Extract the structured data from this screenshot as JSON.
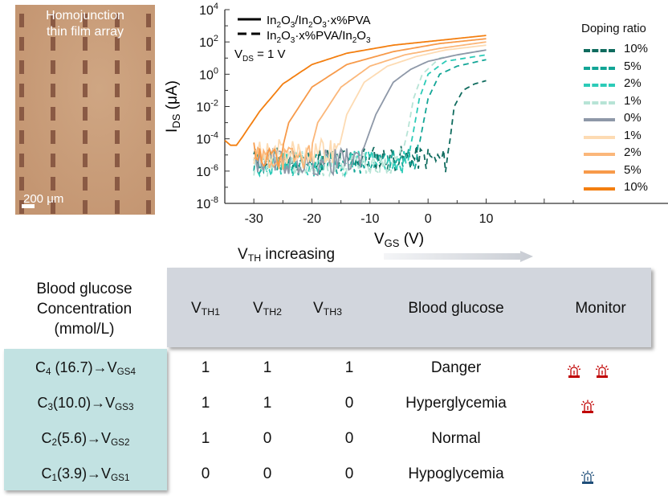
{
  "micrograph": {
    "title_line1": "Homojunction",
    "title_line2": "thin film array",
    "scale_label": "200 μm"
  },
  "chart_data": {
    "type": "line",
    "title": "",
    "xlabel": "V_GS (V)",
    "ylabel": "I_DS (μA)",
    "xlim": [
      -35,
      25
    ],
    "ylim_log10": [
      -8,
      4
    ],
    "yscale": "log",
    "xticks": [
      -30,
      -20,
      -10,
      0,
      10
    ],
    "xtick_labels": [
      "-30",
      "-20",
      "-10",
      "0",
      "10"
    ],
    "yticks_log10": [
      4,
      2,
      0,
      -2,
      -4,
      -6,
      -8
    ],
    "ytick_labels": [
      "10^4",
      "10^2",
      "10^0",
      "10^-2",
      "10^-4",
      "10^-6",
      "10^-8"
    ],
    "annotations": {
      "solid_style_label": "In2O3/In2O3·x%PVA",
      "dashed_style_label": "In2O3·x%PVA/In2O3",
      "condition": "V_DS = 1 V"
    },
    "legend_title": "Doping ratio",
    "legend_position": "right",
    "series": [
      {
        "name": "10%",
        "structure": "In2O3·x%PVA/In2O3",
        "style": "dashed",
        "color": "#0f6b5e",
        "x": [
          -30,
          -20,
          -10,
          0,
          3,
          3.8,
          4.5,
          6,
          8,
          10
        ],
        "log10_y": [
          -5.2,
          -5.3,
          -5.2,
          -5.2,
          -5.4,
          -4,
          -2,
          -1,
          -0.6,
          -0.4
        ]
      },
      {
        "name": "5%",
        "structure": "In2O3·x%PVA/In2O3",
        "style": "dashed",
        "color": "#12a596",
        "x": [
          -30,
          -20,
          -10,
          -2,
          -0.8,
          0,
          2,
          5,
          10
        ],
        "log10_y": [
          -5.4,
          -5.5,
          -5.4,
          -5.3,
          -3,
          -1.5,
          0,
          0.5,
          0.9
        ]
      },
      {
        "name": "2%",
        "structure": "In2O3·x%PVA/In2O3",
        "style": "dashed",
        "color": "#2ccbb8",
        "x": [
          -30,
          -20,
          -10,
          -3.5,
          -2.5,
          -1.5,
          0,
          3,
          10
        ],
        "log10_y": [
          -5.5,
          -5.6,
          -5.5,
          -5.4,
          -3.5,
          -1.5,
          0,
          0.8,
          1.2
        ]
      },
      {
        "name": "1%",
        "structure": "In2O3·x%PVA/In2O3",
        "style": "dashed",
        "color": "#b7e4d6",
        "x": [
          -30,
          -20,
          -10,
          -4.8,
          -3.5,
          -2.5,
          -1,
          2,
          10
        ],
        "log10_y": [
          -5.6,
          -5.5,
          -5.6,
          -5.5,
          -3.5,
          -1.5,
          0,
          1,
          1.5
        ]
      },
      {
        "name": "0%",
        "structure": "In2O3/In2O3·x%PVA",
        "style": "solid",
        "color": "#8e98a8",
        "x": [
          -30,
          -20,
          -12,
          -11,
          -9,
          -6,
          -3,
          0,
          5,
          10
        ],
        "log10_y": [
          -5.3,
          -5.5,
          -5.3,
          -4.5,
          -2.5,
          -0.5,
          0.3,
          0.8,
          1.2,
          1.5
        ]
      },
      {
        "name": "1%",
        "structure": "In2O3/In2O3·x%PVA",
        "style": "solid",
        "color": "#fddbb3",
        "x": [
          -30,
          -20,
          -15.5,
          -14,
          -11,
          -7,
          -2,
          3,
          10
        ],
        "log10_y": [
          -4.8,
          -4.8,
          -4.8,
          -2.5,
          -0.5,
          0.5,
          1.1,
          1.5,
          1.8
        ]
      },
      {
        "name": "2%",
        "structure": "In2O3/In2O3·x%PVA",
        "style": "solid",
        "color": "#fbb77a",
        "x": [
          -30,
          -24,
          -20.5,
          -19,
          -15,
          -10,
          -4,
          2,
          10
        ],
        "log10_y": [
          -5.2,
          -5.2,
          -5.1,
          -3,
          -0.8,
          0.5,
          1.2,
          1.6,
          2
        ]
      },
      {
        "name": "5%",
        "structure": "In2O3/In2O3·x%PVA",
        "style": "solid",
        "color": "#f79a4a",
        "x": [
          -30,
          -27,
          -25.5,
          -24,
          -20,
          -14,
          -6,
          2,
          10
        ],
        "log10_y": [
          -5,
          -5.2,
          -5.2,
          -3,
          -0.8,
          0.6,
          1.4,
          1.9,
          2.2
        ]
      },
      {
        "name": "10%",
        "structure": "In2O3/In2O3·x%PVA",
        "style": "solid",
        "color": "#f37e0f",
        "x": [
          -35,
          -34,
          -33,
          -32,
          -29,
          -25,
          -20,
          -14,
          -6,
          2,
          10
        ],
        "log10_y": [
          -4.1,
          -4.4,
          -4.4,
          -3.9,
          -2.3,
          -0.6,
          0.6,
          1.3,
          1.8,
          2.1,
          2.4
        ]
      }
    ]
  },
  "table": {
    "vth_label": "V_TH increasing",
    "row_header_title": [
      "Blood glucose",
      "Concentration",
      "(mmol/L)"
    ],
    "columns": [
      "V_TH1",
      "V_TH2",
      "V_TH3",
      "Blood glucose",
      "Monitor"
    ],
    "rows": [
      {
        "concentration": "C4 (16.7)→VGS4",
        "c_sub": "4",
        "c_val": " (16.7)→V",
        "v_sub": "GS4",
        "vth1": "1",
        "vth2": "1",
        "vth3": "1",
        "status": "Danger",
        "alarms": 2,
        "alarm_color": "#c00000"
      },
      {
        "concentration": "C3(10.0)→VGS3",
        "c_sub": "3",
        "c_val": "(10.0)→V",
        "v_sub": "GS3",
        "vth1": "1",
        "vth2": "1",
        "vth3": "0",
        "status": "Hyperglycemia",
        "alarms": 1,
        "alarm_color": "#c00000"
      },
      {
        "concentration": "C2(5.6)→VGS2",
        "c_sub": "2",
        "c_val": "(5.6)→V",
        "v_sub": "GS2",
        "vth1": "1",
        "vth2": "0",
        "vth3": "0",
        "status": "Normal",
        "alarms": 0,
        "alarm_color": ""
      },
      {
        "concentration": "C1(3.9)→VGS1",
        "c_sub": "1",
        "c_val": "(3.9)→V",
        "v_sub": "GS1",
        "vth1": "0",
        "vth2": "0",
        "vth3": "0",
        "status": "Hypoglycemia",
        "alarms": 1,
        "alarm_color": "#1f4e79"
      }
    ]
  }
}
